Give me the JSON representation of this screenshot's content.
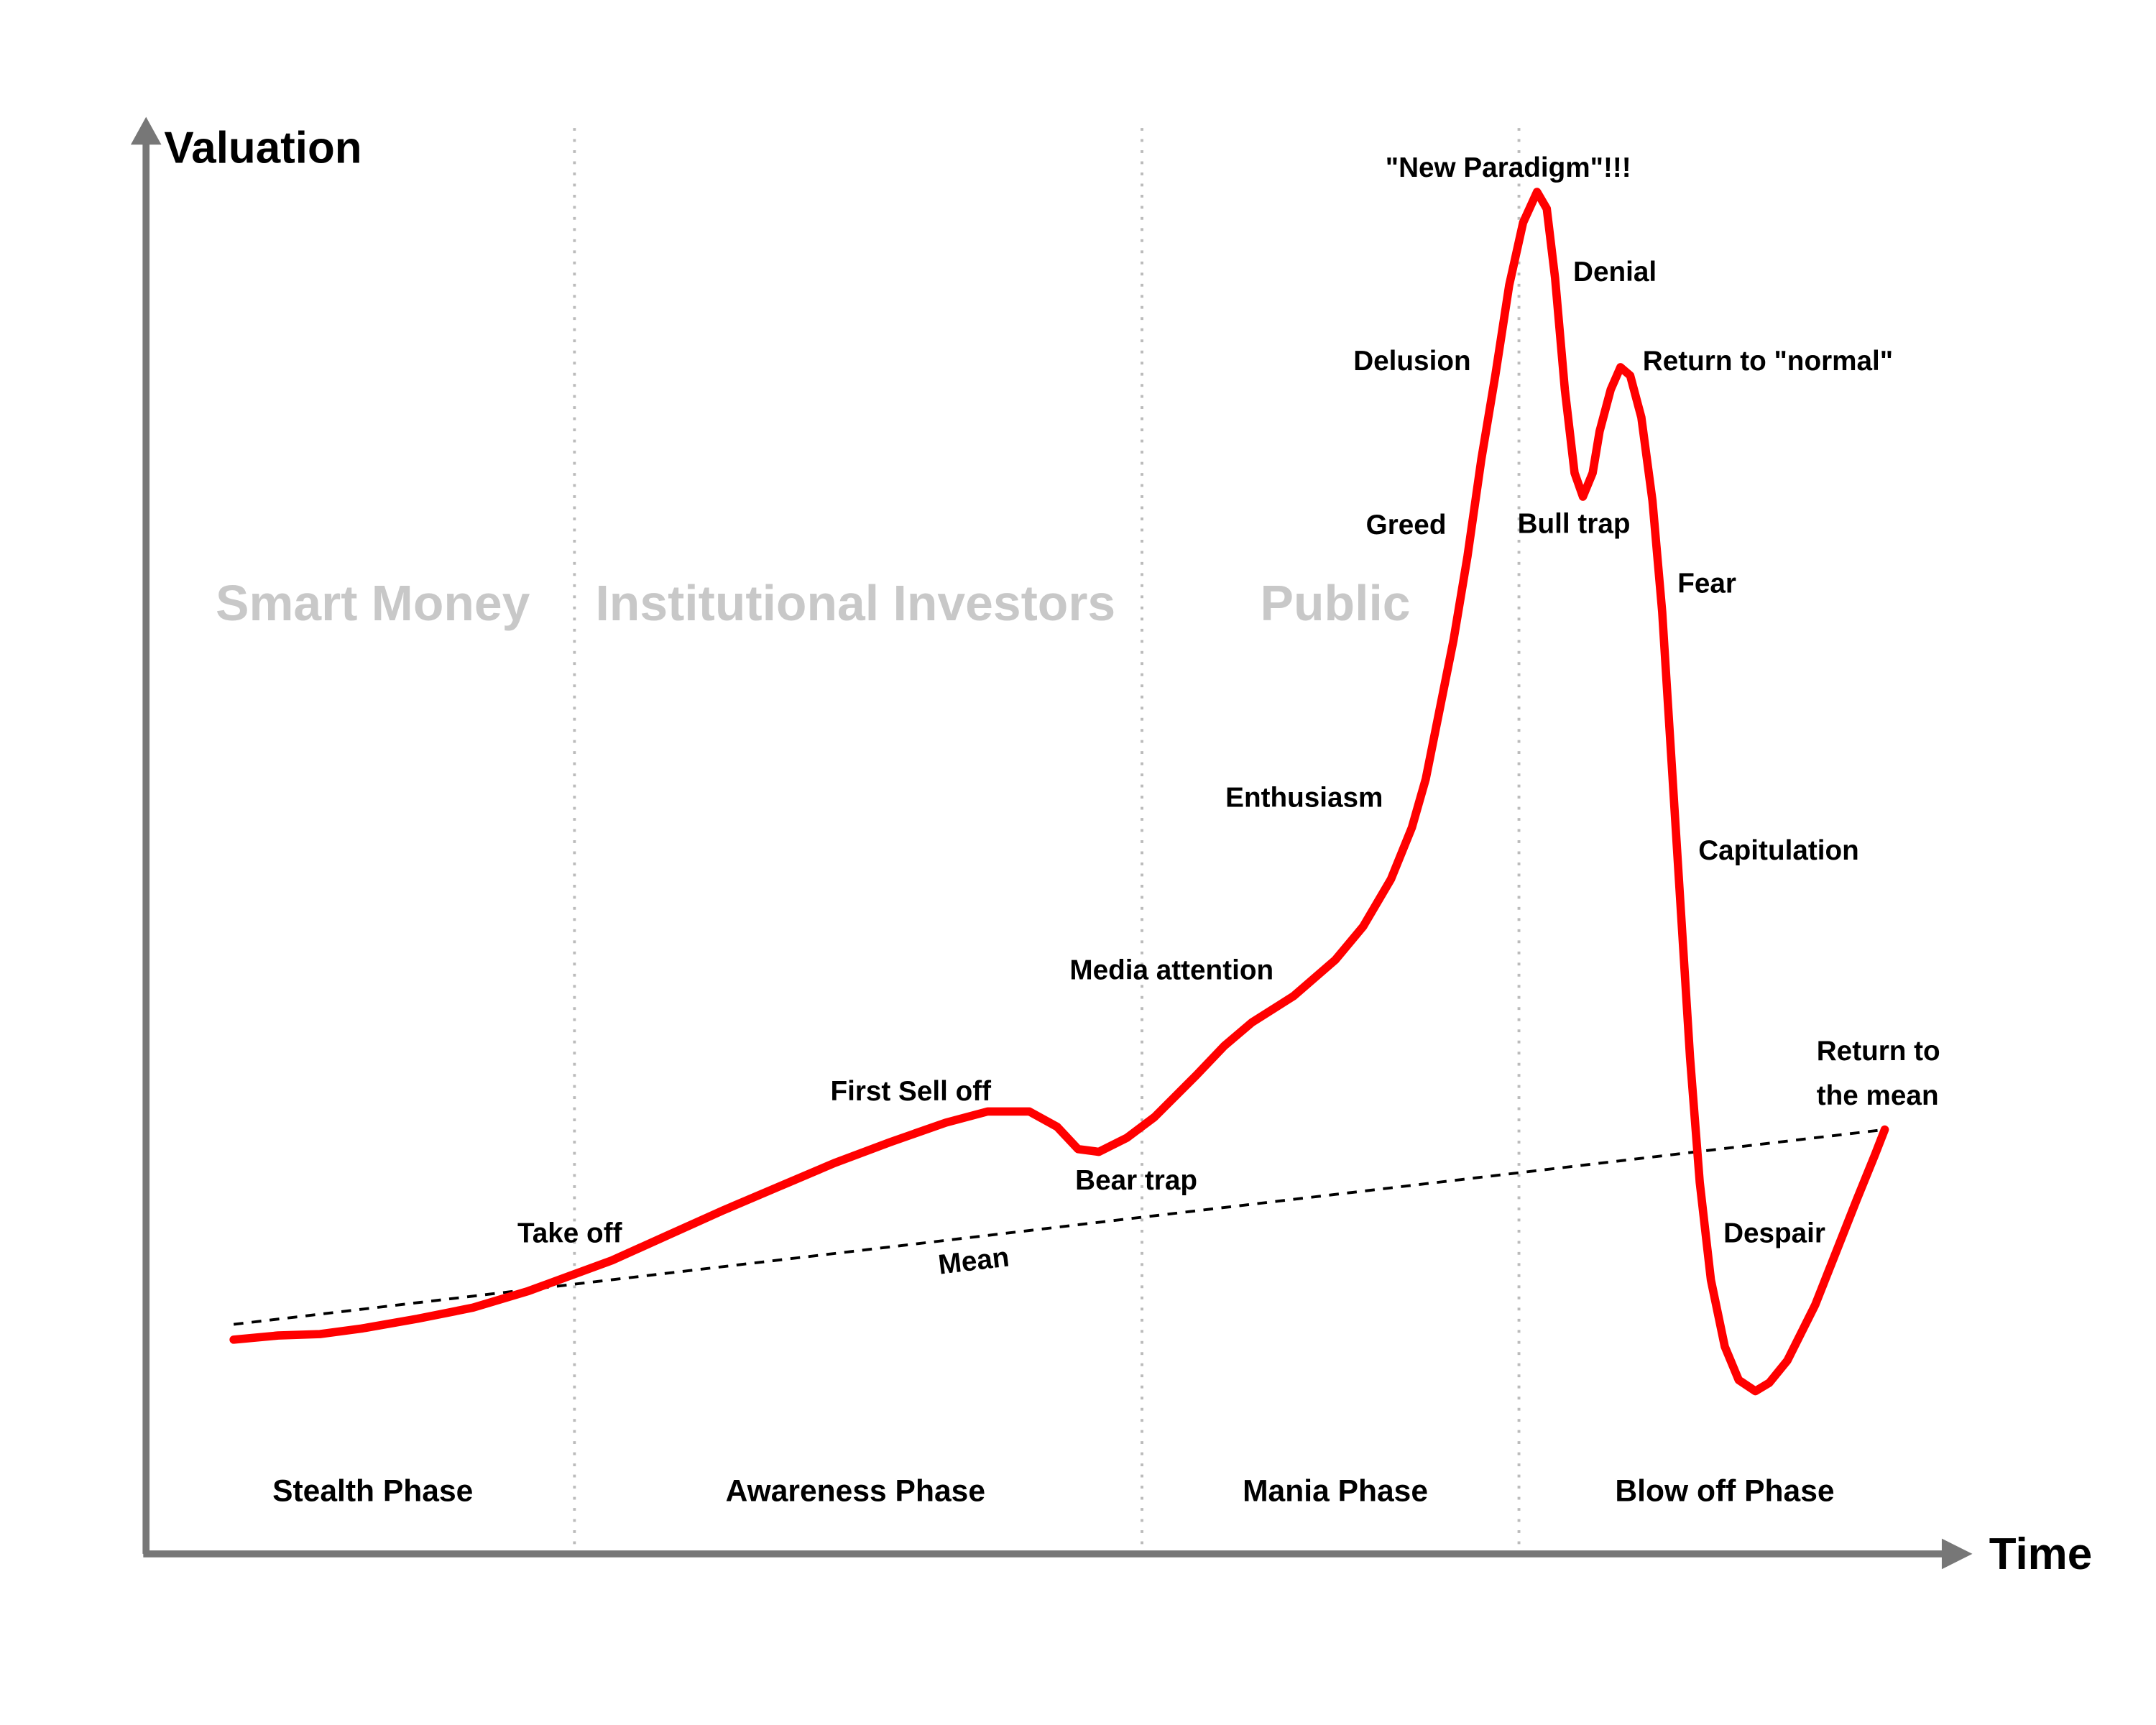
{
  "axes": {
    "y_label": "Valuation",
    "x_label": "Time"
  },
  "groups": [
    "Smart Money",
    "Institutional Investors",
    "Public"
  ],
  "phases": [
    "Stealth Phase",
    "Awareness Phase",
    "Mania Phase",
    "Blow off Phase"
  ],
  "annotations": [
    "Take off",
    "First Sell off",
    "Bear trap",
    "Media attention",
    "Enthusiasm",
    "Greed",
    "Delusion",
    "\"New Paradigm\"!!!",
    "Denial",
    "Bull trap",
    "Return to \"normal\"",
    "Fear",
    "Capitulation",
    "Despair",
    "Return to",
    "the mean"
  ],
  "mean_label": "Mean"
}
